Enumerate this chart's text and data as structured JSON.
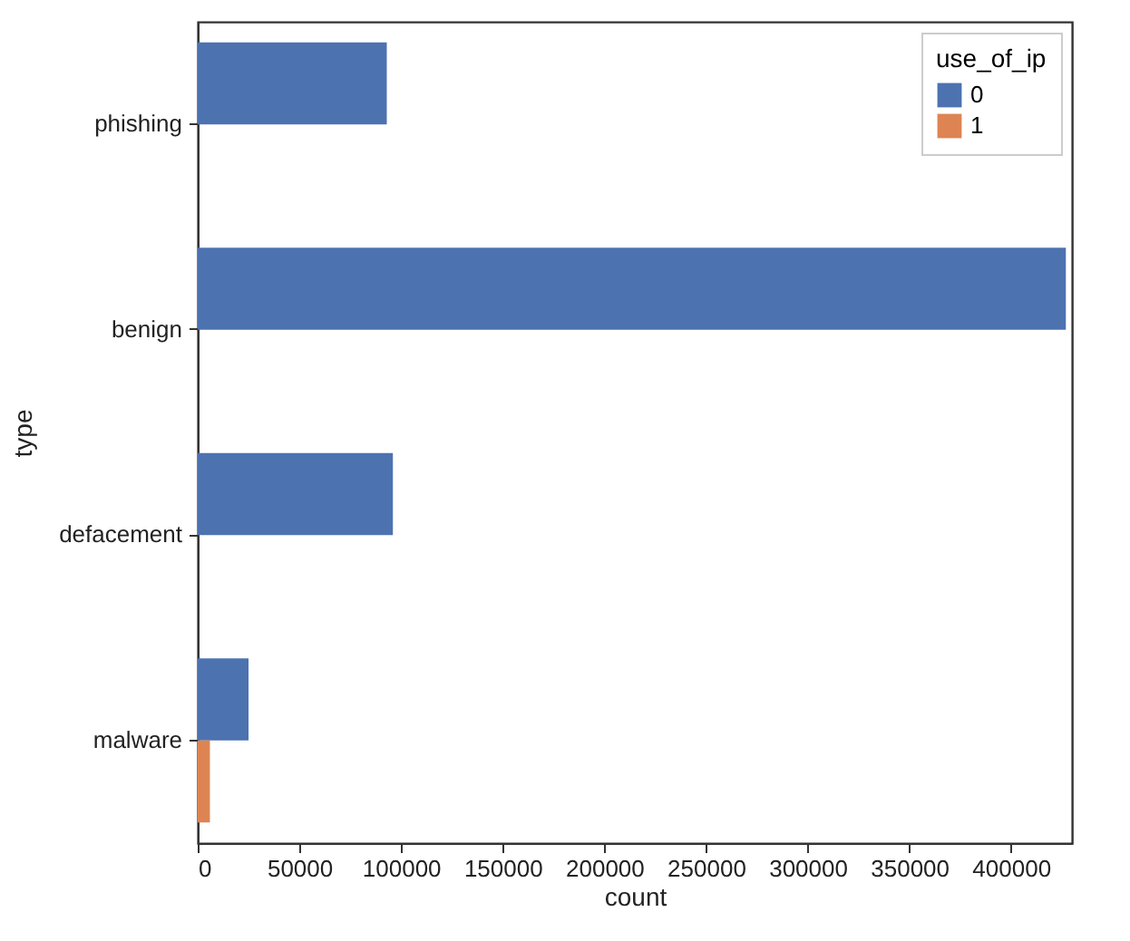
{
  "chart_data": {
    "type": "bar",
    "orientation": "horizontal",
    "xlabel": "count",
    "ylabel": "type",
    "legend_title": "use_of_ip",
    "legend": "top right",
    "categories": [
      "phishing",
      "benign",
      "defacement",
      "malware"
    ],
    "series": [
      {
        "name": "0",
        "color": "#4c72b0",
        "values": [
          93000,
          427000,
          96000,
          25000
        ]
      },
      {
        "name": "1",
        "color": "#dd8452",
        "values": [
          0,
          0,
          0,
          6000
        ]
      }
    ],
    "xlim": [
      0,
      430000
    ],
    "xticks": [
      0,
      50000,
      100000,
      150000,
      200000,
      250000,
      300000,
      350000,
      400000
    ],
    "grid": false
  }
}
